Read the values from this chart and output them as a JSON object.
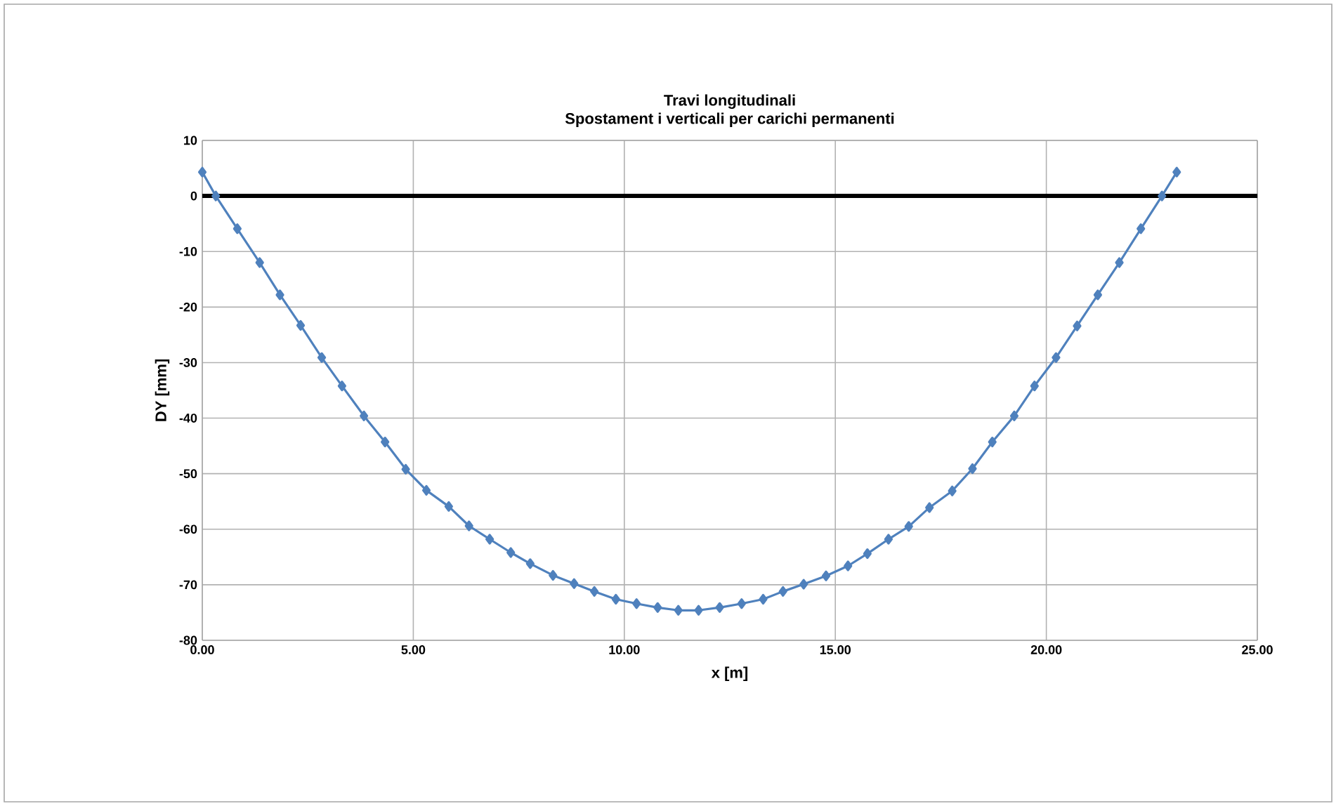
{
  "chart_data": {
    "type": "line",
    "title": "Travi longitudinali",
    "subtitle": "Spostament i verticali per carichi permanenti",
    "xlabel": "x [m]",
    "ylabel": "DY  [mm]",
    "xlim": [
      0,
      25
    ],
    "ylim": [
      -80,
      10
    ],
    "xticks": [
      {
        "value": 0,
        "label": "0.00"
      },
      {
        "value": 5,
        "label": "5.00"
      },
      {
        "value": 10,
        "label": "10.00"
      },
      {
        "value": 15,
        "label": "15.00"
      },
      {
        "value": 20,
        "label": "20.00"
      },
      {
        "value": 25,
        "label": "25.00"
      }
    ],
    "yticks": [
      -80,
      -70,
      -60,
      -50,
      -40,
      -30,
      -20,
      -10,
      0,
      10
    ],
    "grid": true,
    "marker": "diamond",
    "line_style": "solid",
    "ref_lines": [
      {
        "axis": "y",
        "value": 0,
        "color": "#000000"
      }
    ],
    "series": [
      {
        "color": "#4f81bd",
        "x": [
          0,
          0.32,
          0.83,
          1.36,
          1.84,
          2.33,
          2.83,
          3.31,
          3.83,
          4.33,
          4.82,
          5.31,
          5.84,
          6.32,
          6.81,
          7.31,
          7.77,
          8.31,
          8.81,
          9.29,
          9.8,
          10.29,
          10.79,
          11.28,
          11.76,
          12.26,
          12.78,
          13.29,
          13.76,
          14.25,
          14.78,
          15.3,
          15.76,
          16.26,
          16.74,
          17.23,
          17.77,
          18.25,
          18.72,
          19.24,
          19.72,
          20.23,
          20.73,
          21.22,
          21.73,
          22.24,
          22.74,
          23.09
        ],
        "values": [
          4.3,
          0,
          -5.9,
          -12,
          -17.8,
          -23.3,
          -29.1,
          -34.2,
          -39.6,
          -44.3,
          -49.2,
          -53,
          -55.9,
          -59.4,
          -61.8,
          -64.2,
          -66.2,
          -68.3,
          -69.8,
          -71.2,
          -72.6,
          -73.4,
          -74.1,
          -74.6,
          -74.6,
          -74.1,
          -73.4,
          -72.6,
          -71.2,
          -69.9,
          -68.4,
          -66.6,
          -64.4,
          -61.8,
          -59.5,
          -56.1,
          -53.1,
          -49.1,
          -44.3,
          -39.6,
          -34.2,
          -29.1,
          -23.4,
          -17.8,
          -12,
          -5.9,
          0,
          4.3
        ]
      }
    ]
  }
}
